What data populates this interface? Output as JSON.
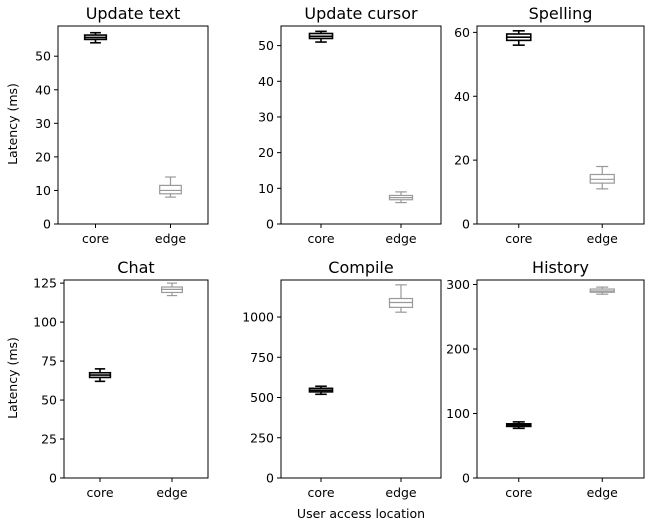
{
  "figure": {
    "ylabel": "Latency (ms)",
    "xlabel": "User access location"
  },
  "chart_data": [
    {
      "type": "box",
      "title": "Update text",
      "categories": [
        "core",
        "edge"
      ],
      "ylim": [
        0,
        59
      ],
      "yticks": [
        0,
        10,
        20,
        30,
        40,
        50
      ],
      "colors": [
        "#000000",
        "#999999"
      ],
      "boxes": [
        {
          "category": "core",
          "whislo": 54.0,
          "q1": 55.0,
          "med": 55.6,
          "q3": 56.3,
          "whishi": 57.0
        },
        {
          "category": "edge",
          "whislo": 8.0,
          "q1": 9.0,
          "med": 10.0,
          "q3": 11.5,
          "whishi": 14.0
        }
      ]
    },
    {
      "type": "box",
      "title": "Update cursor",
      "categories": [
        "core",
        "edge"
      ],
      "ylim": [
        0,
        55.5
      ],
      "yticks": [
        0,
        10,
        20,
        30,
        40,
        50
      ],
      "colors": [
        "#000000",
        "#999999"
      ],
      "boxes": [
        {
          "category": "core",
          "whislo": 51.0,
          "q1": 52.0,
          "med": 52.6,
          "q3": 53.4,
          "whishi": 54.0
        },
        {
          "category": "edge",
          "whislo": 6.0,
          "q1": 6.8,
          "med": 7.4,
          "q3": 8.0,
          "whishi": 9.0
        }
      ]
    },
    {
      "type": "box",
      "title": "Spelling",
      "categories": [
        "core",
        "edge"
      ],
      "ylim": [
        0,
        62
      ],
      "yticks": [
        0,
        20,
        40,
        60
      ],
      "colors": [
        "#000000",
        "#999999"
      ],
      "boxes": [
        {
          "category": "core",
          "whislo": 56.0,
          "q1": 57.5,
          "med": 58.5,
          "q3": 59.5,
          "whishi": 60.5
        },
        {
          "category": "edge",
          "whislo": 11.0,
          "q1": 12.8,
          "med": 14.0,
          "q3": 15.5,
          "whishi": 18.0
        }
      ]
    },
    {
      "type": "box",
      "title": "Chat",
      "categories": [
        "core",
        "edge"
      ],
      "ylim": [
        0,
        127
      ],
      "yticks": [
        0,
        25,
        50,
        75,
        100,
        125
      ],
      "colors": [
        "#000000",
        "#999999"
      ],
      "boxes": [
        {
          "category": "core",
          "whislo": 62.0,
          "q1": 64.5,
          "med": 66.0,
          "q3": 67.5,
          "whishi": 70.0
        },
        {
          "category": "edge",
          "whislo": 117.0,
          "q1": 119.0,
          "med": 121.0,
          "q3": 122.5,
          "whishi": 125.0
        }
      ]
    },
    {
      "type": "box",
      "title": "Compile",
      "categories": [
        "core",
        "edge"
      ],
      "ylim": [
        0,
        1230
      ],
      "yticks": [
        0,
        250,
        500,
        750,
        1000
      ],
      "colors": [
        "#000000",
        "#999999"
      ],
      "boxes": [
        {
          "category": "core",
          "whislo": 520,
          "q1": 535,
          "med": 545,
          "q3": 557,
          "whishi": 570
        },
        {
          "category": "edge",
          "whislo": 1030,
          "q1": 1060,
          "med": 1090,
          "q3": 1115,
          "whishi": 1200
        }
      ]
    },
    {
      "type": "box",
      "title": "History",
      "categories": [
        "core",
        "edge"
      ],
      "ylim": [
        0,
        307
      ],
      "yticks": [
        0,
        100,
        200,
        300
      ],
      "colors": [
        "#000000",
        "#999999"
      ],
      "boxes": [
        {
          "category": "core",
          "whislo": 77,
          "q1": 80,
          "med": 82,
          "q3": 84,
          "whishi": 87
        },
        {
          "category": "edge",
          "whislo": 285,
          "q1": 288,
          "med": 290,
          "q3": 293,
          "whishi": 296
        }
      ]
    }
  ]
}
